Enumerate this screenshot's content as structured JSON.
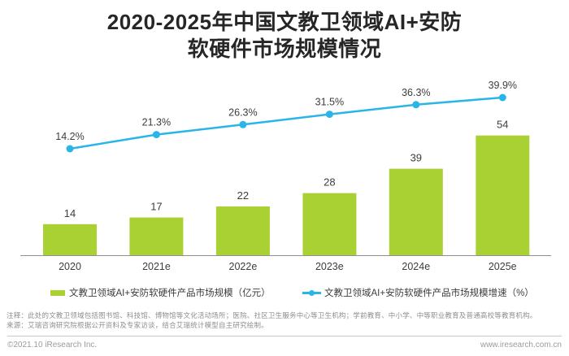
{
  "title": {
    "line1": "2020-2025年中国文教卫领域AI+安防",
    "line2": "软硬件市场规模情况"
  },
  "chart_data": {
    "type": "bar+line combo",
    "title": "2020-2025年中国文教卫领域AI+安防软硬件市场规模情况",
    "categories": [
      "2020",
      "2021e",
      "2022e",
      "2023e",
      "2024e",
      "2025e"
    ],
    "series": [
      {
        "name": "文教卫领域AI+安防软硬件产品市场规模（亿元）",
        "type": "bar",
        "values": [
          14,
          17,
          22,
          28,
          39,
          54
        ],
        "color": "#a9d134",
        "data_labels": [
          "14",
          "17",
          "22",
          "28",
          "39",
          "54"
        ]
      },
      {
        "name": "文教卫领域AI+安防软硬件产品市场规模增速（%）",
        "type": "line",
        "values": [
          14.2,
          21.3,
          26.3,
          31.5,
          36.3,
          39.9
        ],
        "color": "#29b5e8",
        "data_labels": [
          "14.2%",
          "21.3%",
          "26.3%",
          "31.5%",
          "36.3%",
          "39.9%"
        ]
      }
    ],
    "grid": false,
    "y_axis_visible": false,
    "legend_position": "bottom"
  },
  "legend": {
    "bar_label": "文教卫领域AI+安防软硬件产品市场规模（亿元）",
    "line_label": "文教卫领域AI+安防软硬件产品市场规模增速（%）"
  },
  "notes": {
    "note1": "注释：此处的文教卫领域包括图书馆、科技馆、博物馆等文化活动场所；医院、社区卫生服务中心等卫生机构；学前教育、中小学、中等职业教育及普通高校等教育机构。",
    "note2": "来源：艾瑞咨询研究院根据公开资料及专家访谈，结合艾瑞统计模型自主研究绘制。"
  },
  "footer": {
    "copyright": "©2021.10 iResearch Inc.",
    "website": "www.iresearch.com.cn"
  },
  "colors": {
    "bar": "#a9d134",
    "line": "#29b5e8",
    "title_text": "#262626",
    "label_text": "#3d3d3d",
    "note_text": "#8f8f8f",
    "axis": "#8f8f8f"
  }
}
